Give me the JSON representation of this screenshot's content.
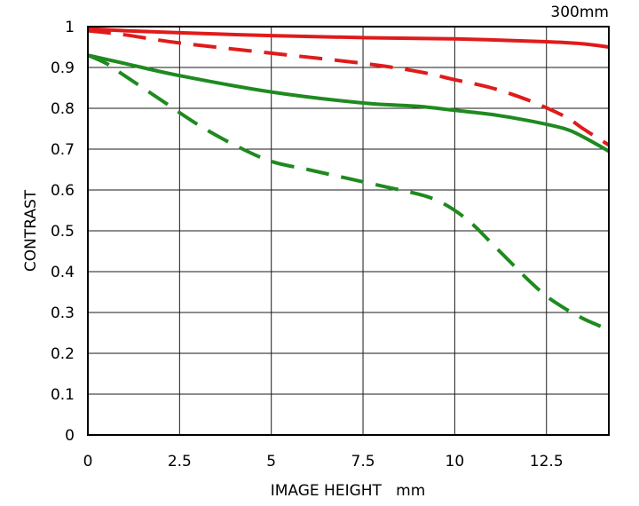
{
  "chart_data": {
    "type": "line",
    "title": "300mm",
    "xlabel": "IMAGE HEIGHT   mm",
    "ylabel": "CONTRAST",
    "xlim": [
      0,
      14.2
    ],
    "ylim": [
      0,
      1
    ],
    "x_ticks": [
      "0",
      "2.5",
      "5",
      "7.5",
      "10",
      "12.5"
    ],
    "y_ticks": [
      "0",
      "0.1",
      "0.2",
      "0.3",
      "0.4",
      "0.5",
      "0.6",
      "0.7",
      "0.8",
      "0.9",
      "1"
    ],
    "grid": true,
    "series": [
      {
        "color": "#e01b1b",
        "style": "solid",
        "x": [
          0,
          1,
          2.5,
          5,
          7.5,
          10,
          12.5,
          13.5,
          14.2
        ],
        "y": [
          0.995,
          0.99,
          0.985,
          0.978,
          0.973,
          0.97,
          0.963,
          0.958,
          0.95
        ]
      },
      {
        "color": "#e01b1b",
        "style": "dashed",
        "x": [
          0,
          1,
          2.5,
          5,
          7.5,
          9,
          10,
          11,
          12,
          13,
          13.5,
          14.2
        ],
        "y": [
          0.99,
          0.98,
          0.96,
          0.935,
          0.91,
          0.89,
          0.87,
          0.85,
          0.82,
          0.78,
          0.75,
          0.71
        ]
      },
      {
        "color": "#1f8a1f",
        "style": "solid",
        "x": [
          0,
          1,
          2.5,
          5,
          7.5,
          9,
          10,
          11,
          12,
          13,
          13.5,
          14.2
        ],
        "y": [
          0.93,
          0.91,
          0.88,
          0.84,
          0.813,
          0.805,
          0.795,
          0.785,
          0.77,
          0.75,
          0.73,
          0.695
        ]
      },
      {
        "color": "#1f8a1f",
        "style": "dashed",
        "x": [
          0,
          0.5,
          1,
          2,
          3,
          4,
          5,
          6,
          7,
          8,
          9,
          9.5,
          10,
          10.5,
          11,
          11.5,
          12,
          12.5,
          13,
          13.5,
          14,
          14.2
        ],
        "y": [
          0.93,
          0.91,
          0.88,
          0.82,
          0.76,
          0.71,
          0.67,
          0.65,
          0.63,
          0.61,
          0.59,
          0.575,
          0.55,
          0.515,
          0.47,
          0.425,
          0.38,
          0.34,
          0.31,
          0.285,
          0.265,
          0.255
        ]
      }
    ]
  }
}
